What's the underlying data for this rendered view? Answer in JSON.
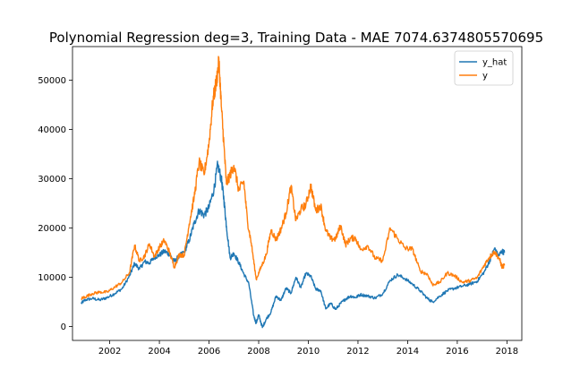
{
  "chart_data": {
    "type": "line",
    "title": "Polynomial Regression deg=3, Training Data - MAE 7074.6374805570695",
    "xlabel": "",
    "ylabel": "",
    "xlim": [
      2000.5,
      2018.6
    ],
    "ylim": [
      -2800,
      56800
    ],
    "x_ticks": [
      2002,
      2004,
      2006,
      2008,
      2010,
      2012,
      2014,
      2016,
      2018
    ],
    "y_ticks": [
      0,
      10000,
      20000,
      30000,
      40000,
      50000
    ],
    "x_tick_labels": [
      "2002",
      "2004",
      "2006",
      "2008",
      "2010",
      "2012",
      "2014",
      "2016",
      "2018"
    ],
    "y_tick_labels": [
      "0",
      "10000",
      "20000",
      "30000",
      "40000",
      "50000"
    ],
    "grid": false,
    "legend_position": "top-right",
    "series": [
      {
        "name": "y_hat",
        "color": "#1f77b4",
        "points": [
          [
            2000.85,
            4700
          ],
          [
            2001.0,
            5400
          ],
          [
            2001.3,
            5700
          ],
          [
            2001.6,
            5400
          ],
          [
            2001.9,
            5900
          ],
          [
            2002.2,
            6700
          ],
          [
            2002.5,
            7700
          ],
          [
            2002.8,
            10300
          ],
          [
            2003.0,
            12800
          ],
          [
            2003.2,
            11700
          ],
          [
            2003.4,
            13200
          ],
          [
            2003.6,
            12900
          ],
          [
            2003.8,
            14100
          ],
          [
            2004.0,
            14500
          ],
          [
            2004.2,
            15300
          ],
          [
            2004.4,
            14700
          ],
          [
            2004.6,
            13200
          ],
          [
            2004.8,
            14300
          ],
          [
            2005.0,
            15100
          ],
          [
            2005.2,
            17500
          ],
          [
            2005.4,
            20900
          ],
          [
            2005.6,
            23600
          ],
          [
            2005.8,
            22600
          ],
          [
            2006.0,
            24200
          ],
          [
            2006.2,
            27900
          ],
          [
            2006.35,
            32800
          ],
          [
            2006.5,
            29800
          ],
          [
            2006.6,
            25800
          ],
          [
            2006.7,
            20400
          ],
          [
            2006.85,
            13900
          ],
          [
            2007.0,
            14900
          ],
          [
            2007.2,
            13000
          ],
          [
            2007.4,
            10700
          ],
          [
            2007.6,
            8800
          ],
          [
            2007.8,
            2200
          ],
          [
            2007.9,
            700
          ],
          [
            2008.0,
            2400
          ],
          [
            2008.15,
            -200
          ],
          [
            2008.3,
            1500
          ],
          [
            2008.5,
            3000
          ],
          [
            2008.7,
            6200
          ],
          [
            2008.9,
            5300
          ],
          [
            2009.1,
            7800
          ],
          [
            2009.3,
            6800
          ],
          [
            2009.5,
            10000
          ],
          [
            2009.7,
            7900
          ],
          [
            2009.9,
            10800
          ],
          [
            2010.1,
            10200
          ],
          [
            2010.3,
            7600
          ],
          [
            2010.5,
            7300
          ],
          [
            2010.7,
            3600
          ],
          [
            2010.9,
            4700
          ],
          [
            2011.1,
            3500
          ],
          [
            2011.3,
            4700
          ],
          [
            2011.5,
            5600
          ],
          [
            2011.7,
            6200
          ],
          [
            2011.9,
            5900
          ],
          [
            2012.1,
            6500
          ],
          [
            2012.4,
            6200
          ],
          [
            2012.7,
            5800
          ],
          [
            2013.0,
            6700
          ],
          [
            2013.3,
            9400
          ],
          [
            2013.6,
            10500
          ],
          [
            2013.9,
            9700
          ],
          [
            2014.2,
            8600
          ],
          [
            2014.5,
            7300
          ],
          [
            2014.8,
            5700
          ],
          [
            2015.0,
            5000
          ],
          [
            2015.3,
            6200
          ],
          [
            2015.6,
            7300
          ],
          [
            2015.9,
            7800
          ],
          [
            2016.2,
            8200
          ],
          [
            2016.5,
            8600
          ],
          [
            2016.8,
            9200
          ],
          [
            2017.1,
            11200
          ],
          [
            2017.3,
            13300
          ],
          [
            2017.5,
            15900
          ],
          [
            2017.65,
            14300
          ],
          [
            2017.8,
            15300
          ],
          [
            2017.9,
            15000
          ]
        ]
      },
      {
        "name": "y",
        "color": "#ff7f0e",
        "points": [
          [
            2000.85,
            5700
          ],
          [
            2001.0,
            6000
          ],
          [
            2001.3,
            6700
          ],
          [
            2001.6,
            7000
          ],
          [
            2001.9,
            7000
          ],
          [
            2002.2,
            8000
          ],
          [
            2002.5,
            9000
          ],
          [
            2002.8,
            11000
          ],
          [
            2003.0,
            16500
          ],
          [
            2003.2,
            13300
          ],
          [
            2003.4,
            14300
          ],
          [
            2003.6,
            16800
          ],
          [
            2003.8,
            14200
          ],
          [
            2004.0,
            16100
          ],
          [
            2004.2,
            17500
          ],
          [
            2004.4,
            15200
          ],
          [
            2004.6,
            12100
          ],
          [
            2004.8,
            14600
          ],
          [
            2005.0,
            14500
          ],
          [
            2005.2,
            20800
          ],
          [
            2005.4,
            26200
          ],
          [
            2005.6,
            33400
          ],
          [
            2005.8,
            30800
          ],
          [
            2006.0,
            37300
          ],
          [
            2006.15,
            45600
          ],
          [
            2006.3,
            49800
          ],
          [
            2006.4,
            53800
          ],
          [
            2006.5,
            44400
          ],
          [
            2006.6,
            36800
          ],
          [
            2006.7,
            28900
          ],
          [
            2006.85,
            30800
          ],
          [
            2007.0,
            32700
          ],
          [
            2007.2,
            27600
          ],
          [
            2007.4,
            29500
          ],
          [
            2007.55,
            21300
          ],
          [
            2007.7,
            17000
          ],
          [
            2007.9,
            9600
          ],
          [
            2008.1,
            12100
          ],
          [
            2008.3,
            14500
          ],
          [
            2008.5,
            19600
          ],
          [
            2008.7,
            17600
          ],
          [
            2008.9,
            19800
          ],
          [
            2009.1,
            23000
          ],
          [
            2009.3,
            28500
          ],
          [
            2009.5,
            21500
          ],
          [
            2009.7,
            23800
          ],
          [
            2009.9,
            24700
          ],
          [
            2010.1,
            28600
          ],
          [
            2010.3,
            23500
          ],
          [
            2010.5,
            24500
          ],
          [
            2010.7,
            19600
          ],
          [
            2010.9,
            17800
          ],
          [
            2011.1,
            17800
          ],
          [
            2011.3,
            20500
          ],
          [
            2011.5,
            16600
          ],
          [
            2011.7,
            17900
          ],
          [
            2011.9,
            18000
          ],
          [
            2012.1,
            15600
          ],
          [
            2012.4,
            16400
          ],
          [
            2012.7,
            13800
          ],
          [
            2013.0,
            13400
          ],
          [
            2013.3,
            20000
          ],
          [
            2013.6,
            17800
          ],
          [
            2013.9,
            15900
          ],
          [
            2014.2,
            15700
          ],
          [
            2014.5,
            11300
          ],
          [
            2014.8,
            10600
          ],
          [
            2015.0,
            8500
          ],
          [
            2015.3,
            9000
          ],
          [
            2015.6,
            10900
          ],
          [
            2015.9,
            10300
          ],
          [
            2016.2,
            9000
          ],
          [
            2016.5,
            9300
          ],
          [
            2016.8,
            9900
          ],
          [
            2017.1,
            12600
          ],
          [
            2017.3,
            14100
          ],
          [
            2017.5,
            15200
          ],
          [
            2017.7,
            13700
          ],
          [
            2017.8,
            12100
          ],
          [
            2017.9,
            12400
          ]
        ]
      }
    ]
  }
}
